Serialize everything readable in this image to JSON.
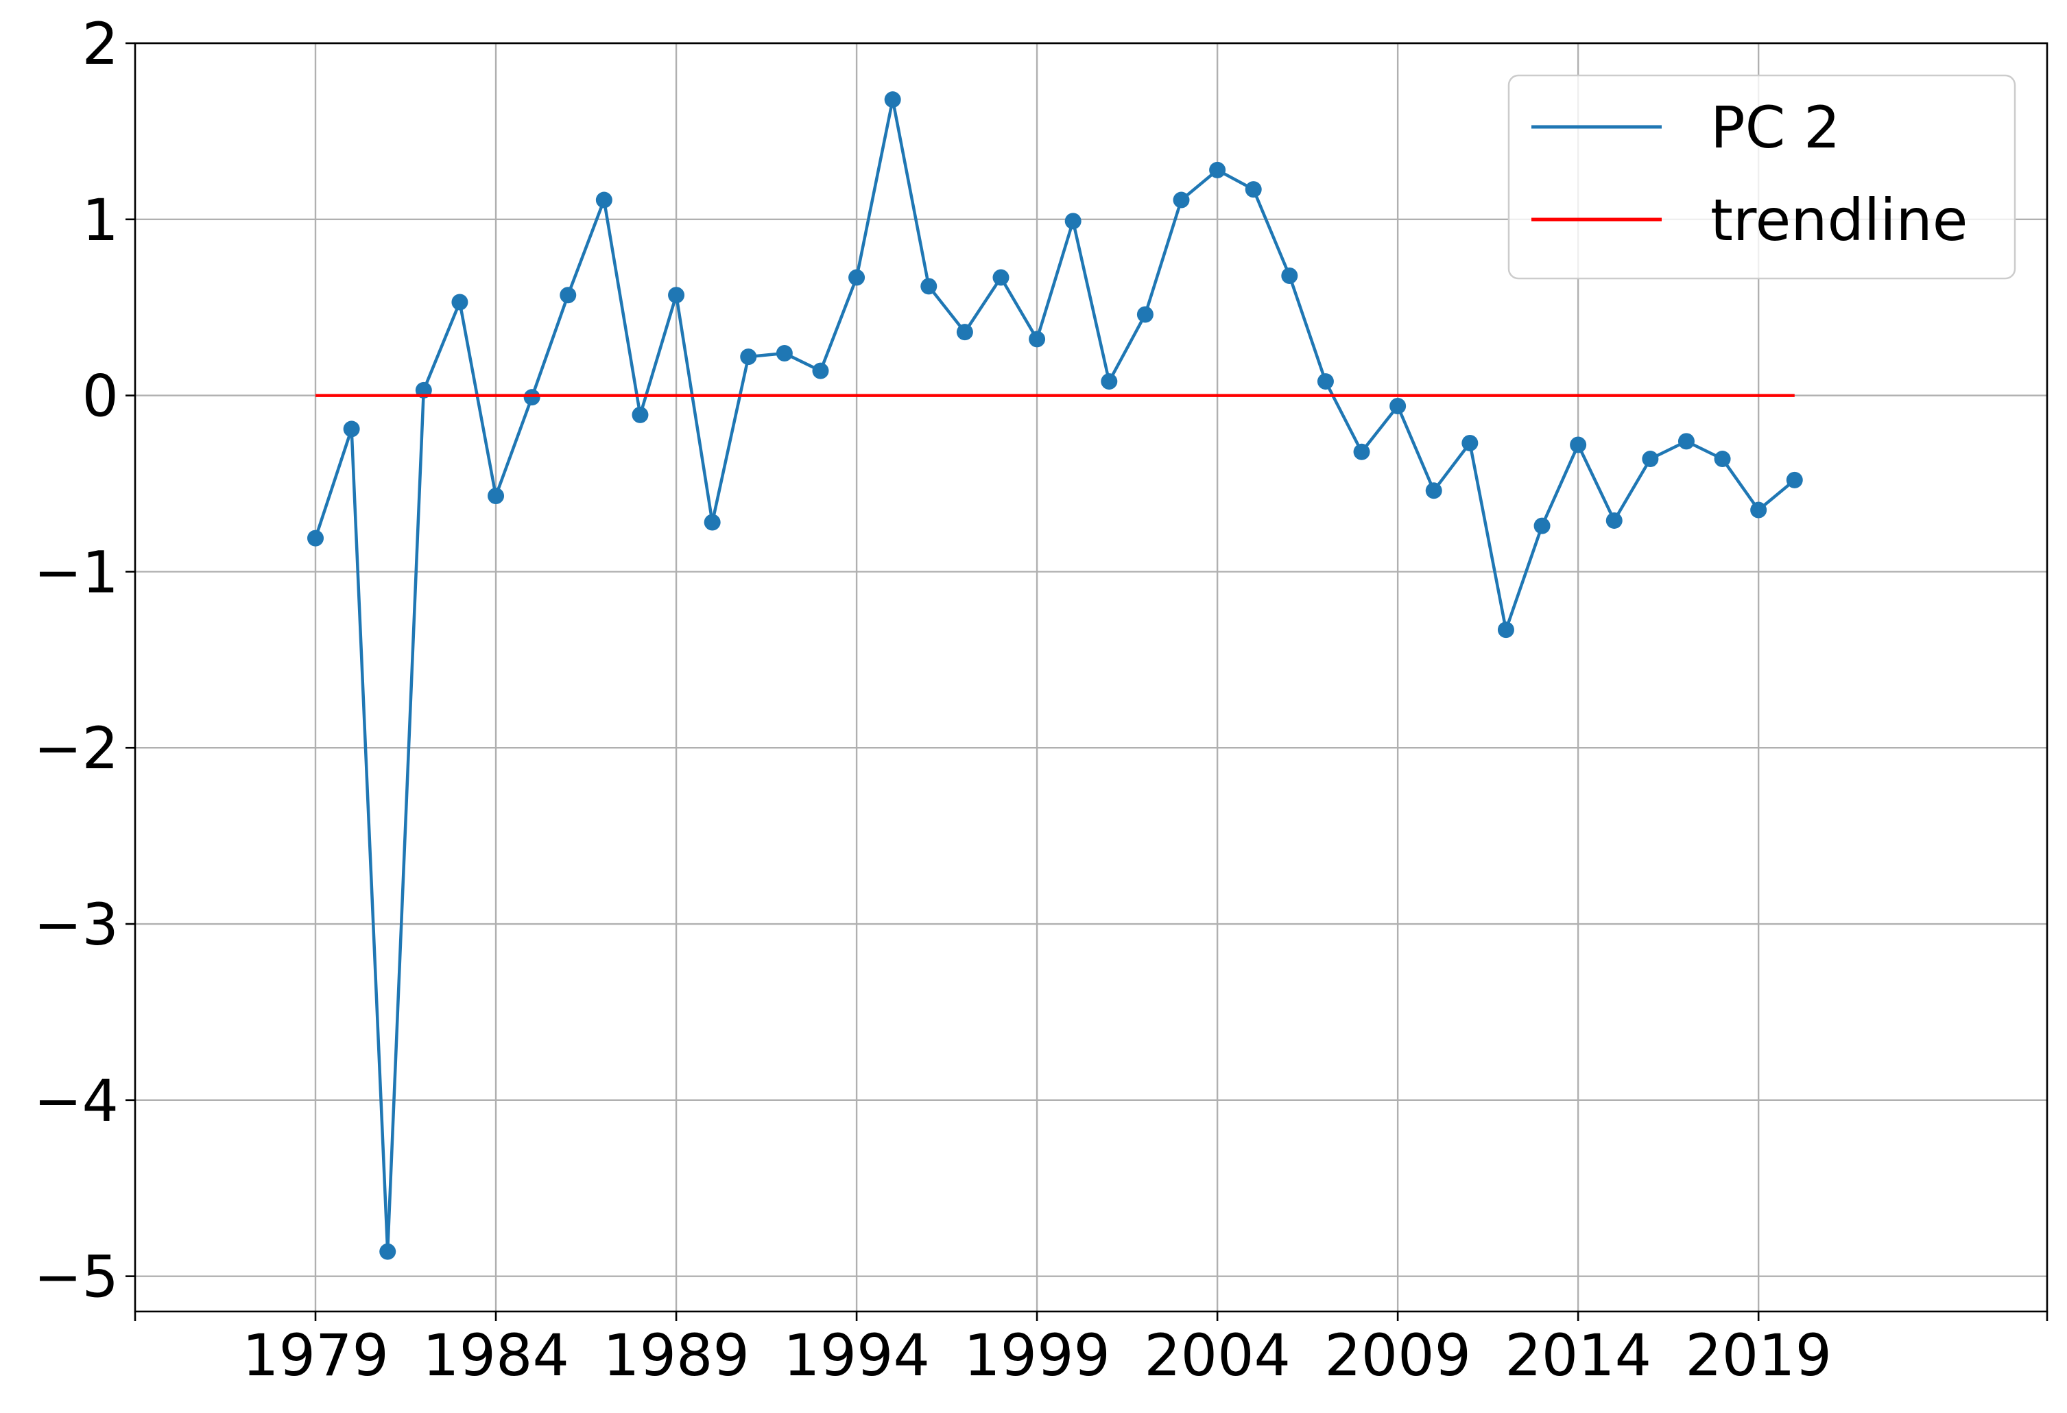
{
  "chart_data": {
    "type": "line",
    "title": "",
    "xlabel": "",
    "ylabel": "",
    "xlim": [
      1974,
      2027
    ],
    "ylim": [
      -5.2,
      2.0
    ],
    "x_ticks": [
      1979,
      1984,
      1989,
      1994,
      1999,
      2004,
      2009,
      2014,
      2019
    ],
    "x_tick_marks": [
      1974,
      1979,
      1984,
      1989,
      1994,
      1999,
      2004,
      2009,
      2014,
      2019,
      2027
    ],
    "y_ticks": [
      2,
      1,
      0,
      -1,
      -2,
      -3,
      -4,
      -5
    ],
    "y_tick_labels": [
      "2",
      "1",
      "0",
      "−1",
      "−2",
      "−3",
      "−4",
      "−5"
    ],
    "grid": true,
    "legend_position": "top-right",
    "series": [
      {
        "name": "PC 2",
        "color": "#1f77b4",
        "marker": "circle",
        "x": [
          1979,
          1980,
          1981,
          1982,
          1983,
          1984,
          1985,
          1986,
          1987,
          1988,
          1989,
          1990,
          1991,
          1992,
          1993,
          1994,
          1995,
          1996,
          1997,
          1998,
          1999,
          2000,
          2001,
          2002,
          2003,
          2004,
          2005,
          2006,
          2007,
          2008,
          2009,
          2010,
          2011,
          2012,
          2013,
          2014,
          2015,
          2016,
          2017,
          2018,
          2019,
          2020
        ],
        "values": [
          -0.81,
          -0.19,
          -4.86,
          0.03,
          0.53,
          -0.57,
          -0.01,
          0.57,
          1.11,
          -0.11,
          0.57,
          -0.72,
          0.22,
          0.24,
          0.14,
          0.67,
          1.68,
          0.62,
          0.36,
          0.67,
          0.32,
          0.99,
          0.08,
          0.46,
          1.11,
          1.28,
          1.17,
          0.68,
          0.08,
          -0.32,
          -0.06,
          -0.54,
          -0.27,
          -1.33,
          -0.74,
          -0.28,
          -0.71,
          -0.36,
          -0.26,
          -0.36,
          -0.65,
          -0.48
        ]
      },
      {
        "name": "trendline",
        "color": "#ff0000",
        "marker": "none",
        "x": [
          1979,
          2020
        ],
        "values": [
          0.0,
          0.0
        ]
      }
    ]
  }
}
